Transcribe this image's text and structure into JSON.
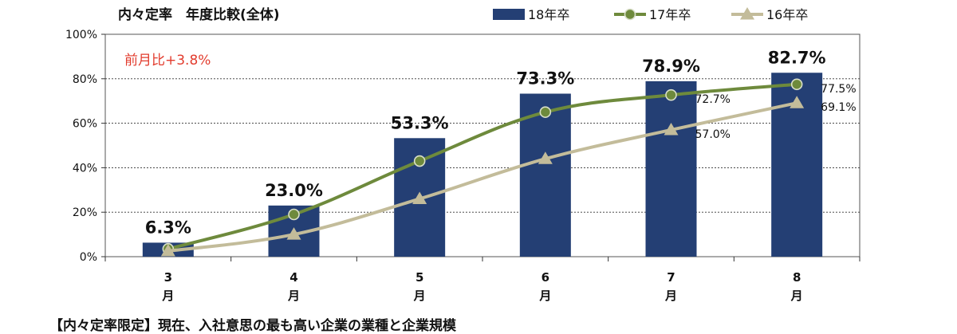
{
  "chart_data": {
    "type": "bar",
    "title": "内々定率　年度比較(全体)",
    "annotation": "前月比+3.8%",
    "categories": [
      "3月",
      "4月",
      "5月",
      "6月",
      "7月",
      "8月"
    ],
    "category_lines": [
      [
        "3",
        "月"
      ],
      [
        "4",
        "月"
      ],
      [
        "5",
        "月"
      ],
      [
        "6",
        "月"
      ],
      [
        "7",
        "月"
      ],
      [
        "8",
        "月"
      ]
    ],
    "ylim": [
      0,
      100
    ],
    "yticks": [
      "0%",
      "20%",
      "40%",
      "60%",
      "80%",
      "100%"
    ],
    "ytick_values": [
      0,
      20,
      40,
      60,
      80,
      100
    ],
    "legend_position": "top",
    "grid": true,
    "series": [
      {
        "name": "18年卒",
        "kind": "bar",
        "color": "#243f74",
        "values": [
          6.3,
          23.0,
          53.3,
          73.3,
          78.9,
          82.7
        ],
        "labels": [
          "6.3%",
          "23.0%",
          "53.3%",
          "73.3%",
          "78.9%",
          "82.7%"
        ]
      },
      {
        "name": "17年卒",
        "kind": "line",
        "marker": "circle",
        "color": "#6e8a3c",
        "values": [
          3.5,
          19.0,
          43.0,
          65.0,
          72.7,
          77.5
        ],
        "labels": [
          "",
          "",
          "",
          "",
          "72.7%",
          "77.5%"
        ]
      },
      {
        "name": "16年卒",
        "kind": "line",
        "marker": "triangle",
        "color": "#c3bc9a",
        "values": [
          2.5,
          10.0,
          26.0,
          44.0,
          57.0,
          69.1
        ],
        "labels": [
          "",
          "",
          "",
          "",
          "57.0%",
          "69.1%"
        ]
      }
    ]
  },
  "footer": {
    "text": "【内々定率限定】現在、入社意思の最も高い企業の業種と企業規模"
  }
}
